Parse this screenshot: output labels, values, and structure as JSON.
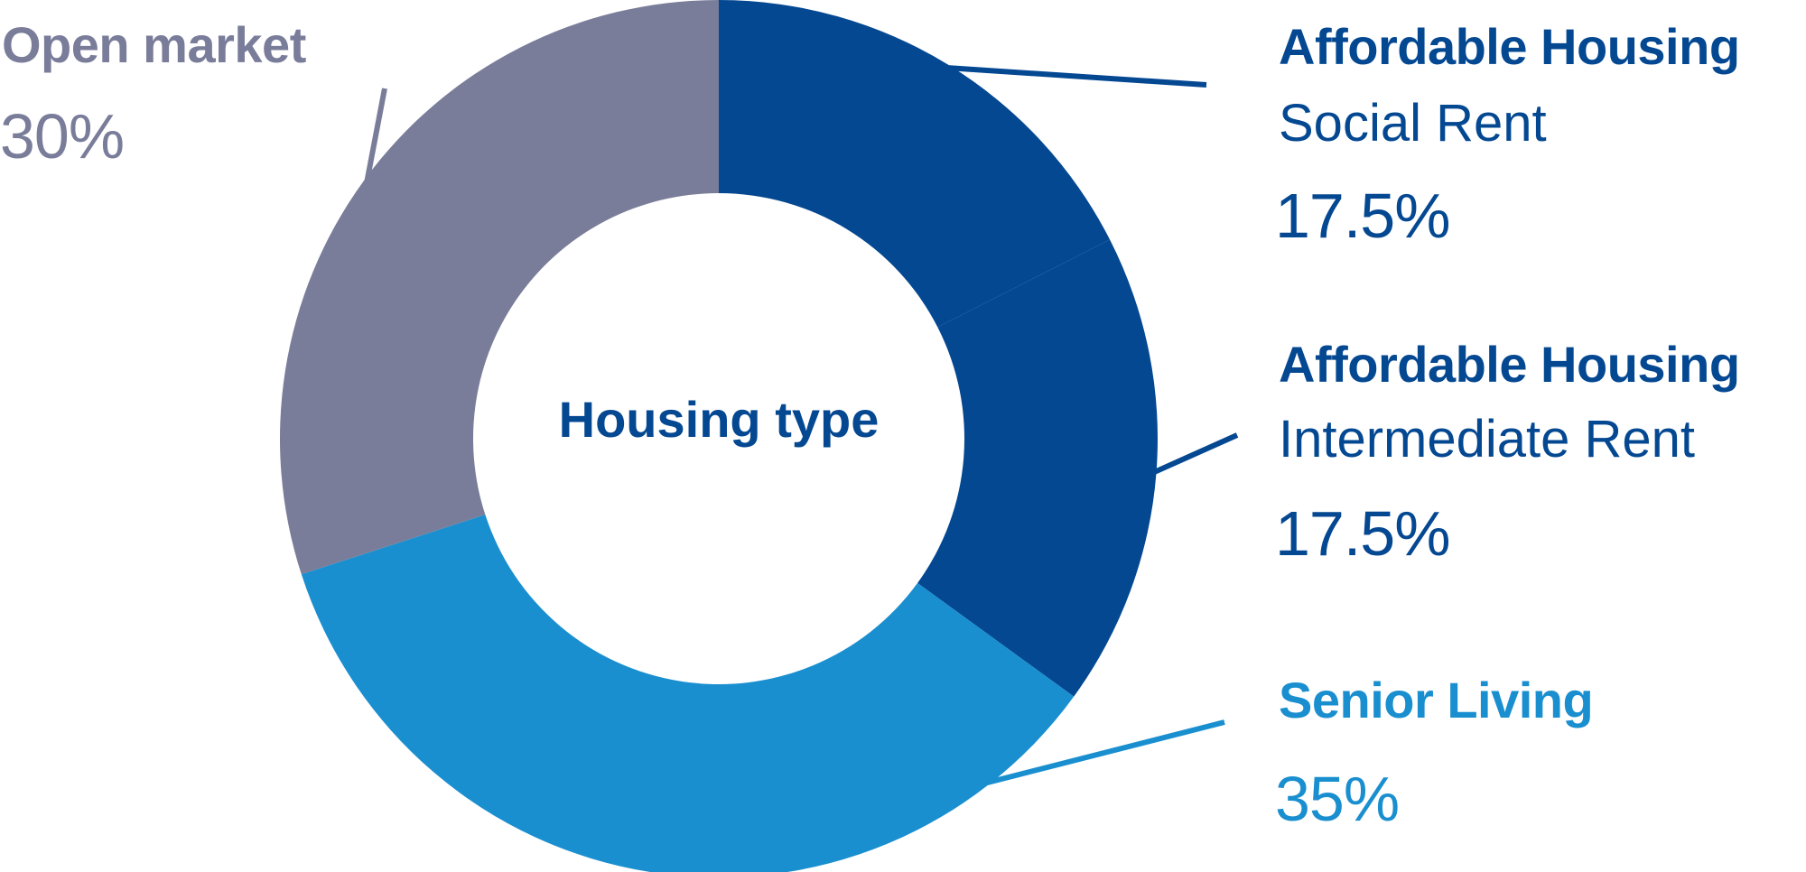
{
  "colors": {
    "open_market": "#7a7d9a",
    "affordable": "#044892",
    "senior": "#1a8fd0",
    "center_text": "#044892"
  },
  "chart_data": {
    "type": "pie",
    "variant": "donut",
    "center_label": "Housing type",
    "slices": [
      {
        "key": "affordable",
        "name": "Affordable Housing",
        "sub": "Social Rent",
        "value": 17.5,
        "value_label": "17.5%"
      },
      {
        "key": "affordable",
        "name": "Affordable Housing",
        "sub": "Intermediate Rent",
        "value": 17.5,
        "value_label": "17.5%"
      },
      {
        "key": "senior",
        "name": "Senior Living",
        "sub": "",
        "value": 35,
        "value_label": "35%"
      },
      {
        "key": "open_market",
        "name": "Open market",
        "sub": "",
        "value": 30,
        "value_label": "30%"
      }
    ]
  }
}
